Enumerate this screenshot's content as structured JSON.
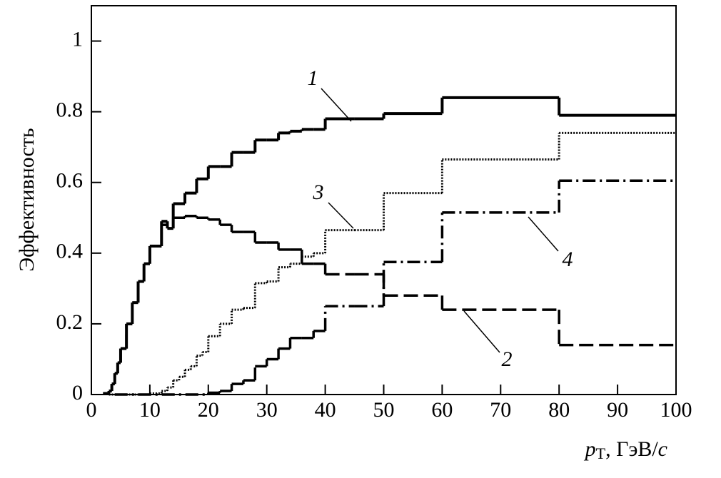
{
  "chart_data": {
    "type": "step",
    "ylabel": "Эффективность",
    "xlabel": [
      "p",
      "T",
      ", ГэВ/",
      "c"
    ],
    "xlim": [
      0,
      100
    ],
    "ylim": [
      0,
      1.1
    ],
    "xticks": [
      0,
      10,
      20,
      30,
      40,
      50,
      60,
      70,
      80,
      90,
      100
    ],
    "yticks": [
      0,
      0.2,
      0.4,
      0.6,
      0.8,
      1
    ],
    "series": [
      {
        "name": "1",
        "color": "#000",
        "style": "solid",
        "bins": [
          2,
          3,
          3.5,
          4,
          4.5,
          5,
          6,
          7,
          8,
          9,
          10,
          11,
          12,
          13,
          14,
          16,
          18,
          20,
          22,
          24,
          26,
          28,
          30,
          32,
          34,
          36,
          38,
          40,
          45,
          50,
          60,
          80,
          100
        ],
        "values": [
          0.003,
          0.01,
          0.03,
          0.06,
          0.09,
          0.13,
          0.2,
          0.26,
          0.32,
          0.37,
          0.42,
          0.42,
          0.49,
          0.47,
          0.54,
          0.57,
          0.61,
          0.645,
          0.645,
          0.685,
          0.685,
          0.72,
          0.72,
          0.74,
          0.745,
          0.75,
          0.75,
          0.78,
          0.78,
          0.795,
          0.84,
          0.79
        ]
      },
      {
        "name": "2",
        "color": "#000",
        "style": "dashed",
        "bins": [
          2,
          3,
          3.5,
          4,
          4.5,
          5,
          6,
          7,
          8,
          9,
          10,
          11,
          12,
          13,
          14,
          16,
          18,
          20,
          22,
          24,
          26,
          28,
          30,
          32,
          34,
          36,
          38,
          40,
          45,
          50,
          60,
          80,
          100
        ],
        "values": [
          0.003,
          0.01,
          0.03,
          0.06,
          0.09,
          0.13,
          0.2,
          0.26,
          0.32,
          0.37,
          0.42,
          0.42,
          0.48,
          0.47,
          0.5,
          0.505,
          0.5,
          0.495,
          0.48,
          0.46,
          0.46,
          0.43,
          0.43,
          0.41,
          0.41,
          0.37,
          0.37,
          0.34,
          0.34,
          0.28,
          0.24,
          0.14
        ]
      },
      {
        "name": "3",
        "color": "#000",
        "style": "dotted",
        "bins": [
          3,
          10,
          12,
          13,
          14,
          15,
          16,
          17,
          18,
          19,
          20,
          22,
          24,
          26,
          28,
          30,
          32,
          34,
          36,
          38,
          40,
          45,
          50,
          60,
          80,
          100
        ],
        "values": [
          0,
          0.003,
          0.01,
          0.02,
          0.04,
          0.05,
          0.07,
          0.08,
          0.11,
          0.12,
          0.165,
          0.2,
          0.24,
          0.245,
          0.315,
          0.32,
          0.36,
          0.37,
          0.39,
          0.4,
          0.465,
          0.465,
          0.57,
          0.665,
          0.74
        ]
      },
      {
        "name": "4",
        "color": "#000",
        "style": "dashdot",
        "bins": [
          4,
          20,
          22,
          24,
          26,
          28,
          30,
          32,
          34,
          36,
          38,
          40,
          45,
          50,
          60,
          80,
          100
        ],
        "values": [
          0,
          0.005,
          0.01,
          0.03,
          0.04,
          0.08,
          0.1,
          0.13,
          0.16,
          0.16,
          0.18,
          0.25,
          0.25,
          0.375,
          0.515,
          0.605
        ]
      }
    ],
    "annotations": [
      {
        "text": "1"
      },
      {
        "text": "2"
      },
      {
        "text": "3"
      },
      {
        "text": "4"
      }
    ]
  }
}
